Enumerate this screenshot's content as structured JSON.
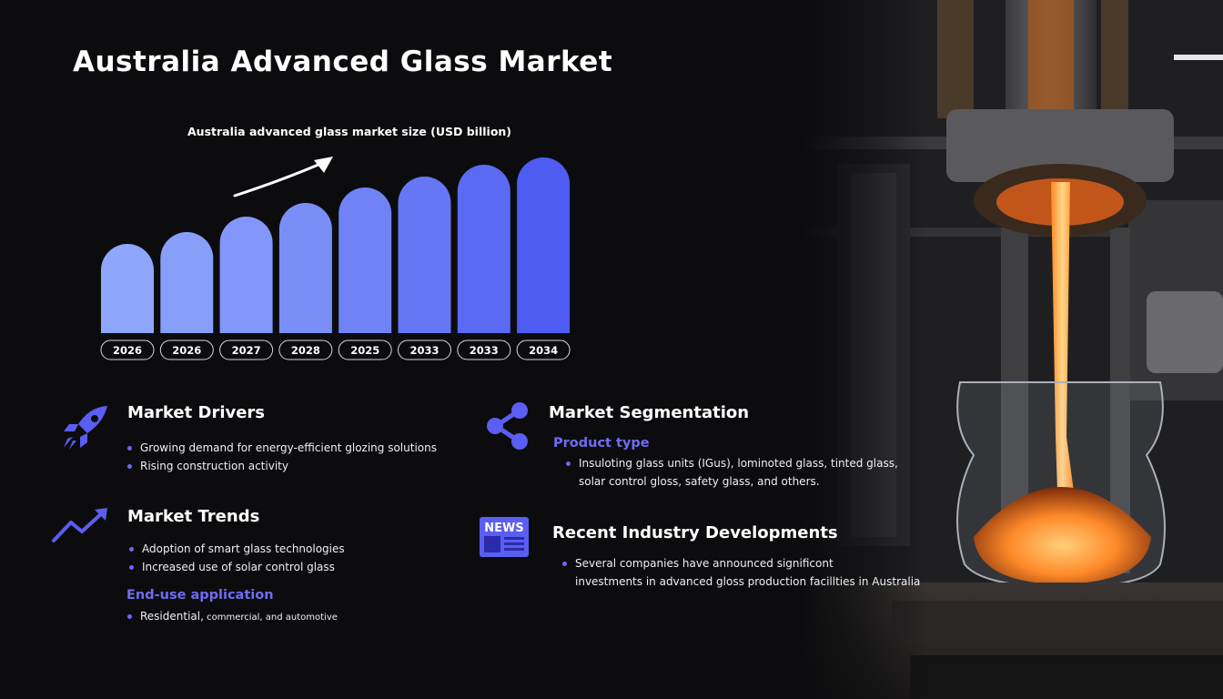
{
  "header": {
    "title": "Australia Advanced Glass Market"
  },
  "chart_data": {
    "type": "bar",
    "title": "Australia advanced glass market size (USD billion)",
    "categories": [
      "2026",
      "2026",
      "2027",
      "2028",
      "2025",
      "2033",
      "2033",
      "2034"
    ],
    "values": [
      98,
      111,
      128,
      143,
      160,
      172,
      185,
      193
    ],
    "ylim": [
      0,
      200
    ],
    "xlabel": "",
    "ylabel": "",
    "grid": false,
    "colors": [
      "#8ea6fb",
      "#889ffa",
      "#8297f9",
      "#7a8ef8",
      "#7083f6",
      "#6677f5",
      "#5b6af3",
      "#4f5cf1"
    ]
  },
  "sections": {
    "drivers": {
      "title": "Market Drivers",
      "icon": "rocket-icon",
      "items": [
        "Growing demand for energy-efficient glozing solutions",
        "Rising construction activity"
      ]
    },
    "trends": {
      "title": "Market Trends",
      "icon": "trending-up-icon",
      "items": [
        "Adoption of smart glass technologies",
        "Increased use of solar control glass"
      ],
      "end_use": {
        "title": "End-use application",
        "item_main": "Residential,",
        "item_small": " commercial, and automotive"
      }
    },
    "segmentation": {
      "title": "Market Segmentation",
      "icon": "share-icon",
      "subtitle": "Product type",
      "items": [
        "Insuloting glass units (IGus), lominoted glass, tinted glass,",
        "solar control gloss, safety glass, and others."
      ]
    },
    "developments": {
      "title": "Recent Industry Developments",
      "icon": "news-icon",
      "icon_text": "NEWS",
      "items": [
        "Several companies have announced significont",
        "investments in advanced gloss production facillties in Australia"
      ]
    }
  },
  "colors": {
    "accent": "#5b5ef2",
    "background": "#0c0c0e"
  }
}
